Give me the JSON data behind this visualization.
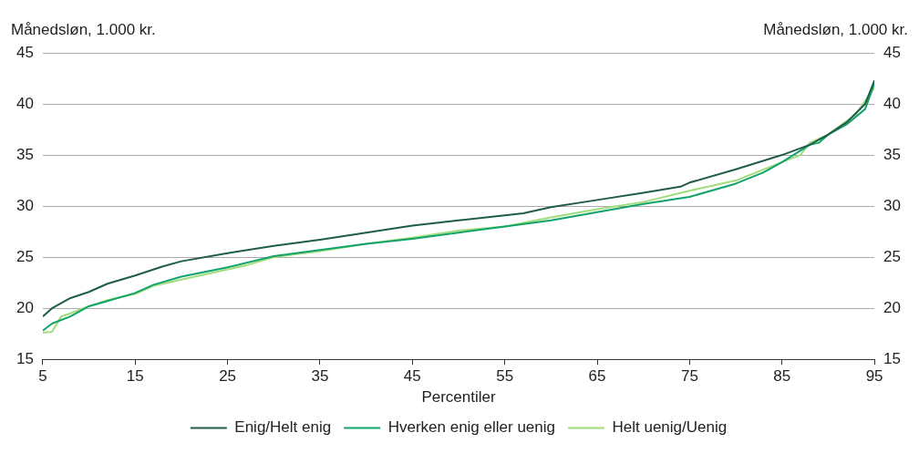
{
  "chart_data": {
    "type": "line",
    "xlabel": "Percentiler",
    "ylabel": "Månedsløn, 1.000 kr.",
    "y2label": "Månedsløn, 1.000 kr.",
    "xlim": [
      5,
      95
    ],
    "xticks": [
      5,
      15,
      25,
      35,
      45,
      55,
      65,
      75,
      85,
      95
    ],
    "ylim": [
      15,
      45
    ],
    "yticks": [
      15,
      20,
      25,
      30,
      35,
      40,
      45
    ],
    "y2lim": [
      15,
      45
    ],
    "y2ticks": [
      15,
      20,
      25,
      30,
      35,
      40,
      45
    ],
    "grid": "y",
    "legend": "bottom",
    "marker": "none",
    "line_style": "solid",
    "series": [
      {
        "name": "Enig/Helt enig",
        "color": "#1f5c4b",
        "x": [
          5,
          6,
          8,
          10,
          12,
          15,
          18,
          20,
          25,
          30,
          35,
          40,
          45,
          50,
          55,
          57,
          60,
          65,
          70,
          74,
          75,
          80,
          85,
          88,
          90,
          92,
          94,
          95
        ],
        "values": [
          19.2,
          20.0,
          21.0,
          21.6,
          22.4,
          23.2,
          24.1,
          24.6,
          25.4,
          26.1,
          26.7,
          27.4,
          28.1,
          28.6,
          29.1,
          29.3,
          29.9,
          30.6,
          31.3,
          31.9,
          32.3,
          33.6,
          35.0,
          36.0,
          37.0,
          38.2,
          40.0,
          42.3
        ]
      },
      {
        "name": "Hverken enig eller uenig",
        "color": "#12a36b",
        "x": [
          5,
          6,
          8,
          10,
          12,
          15,
          17,
          20,
          25,
          30,
          35,
          40,
          45,
          50,
          55,
          60,
          65,
          70,
          75,
          80,
          83,
          85,
          88,
          89,
          90,
          92,
          94,
          95
        ],
        "values": [
          17.8,
          18.5,
          19.2,
          20.2,
          20.7,
          21.5,
          22.3,
          23.1,
          24.0,
          25.1,
          25.7,
          26.3,
          26.8,
          27.4,
          28.0,
          28.6,
          29.4,
          30.2,
          30.9,
          32.2,
          33.3,
          34.3,
          36.0,
          36.2,
          37.0,
          38.0,
          39.5,
          42.0
        ]
      },
      {
        "name": "Helt uenig/Uenig",
        "color": "#9fdc7a",
        "x": [
          5,
          6,
          7,
          8,
          10,
          12,
          15,
          17,
          20,
          25,
          27,
          30,
          35,
          40,
          45,
          50,
          55,
          60,
          65,
          70,
          75,
          80,
          85,
          87,
          88,
          90,
          93,
          95
        ],
        "values": [
          17.6,
          17.7,
          19.2,
          19.5,
          20.2,
          20.8,
          21.4,
          22.2,
          22.8,
          23.8,
          24.2,
          25.0,
          25.6,
          26.3,
          26.9,
          27.6,
          28.0,
          28.9,
          29.7,
          30.4,
          31.5,
          32.5,
          34.3,
          35.0,
          36.2,
          37.0,
          39.0,
          41.6
        ]
      }
    ]
  }
}
